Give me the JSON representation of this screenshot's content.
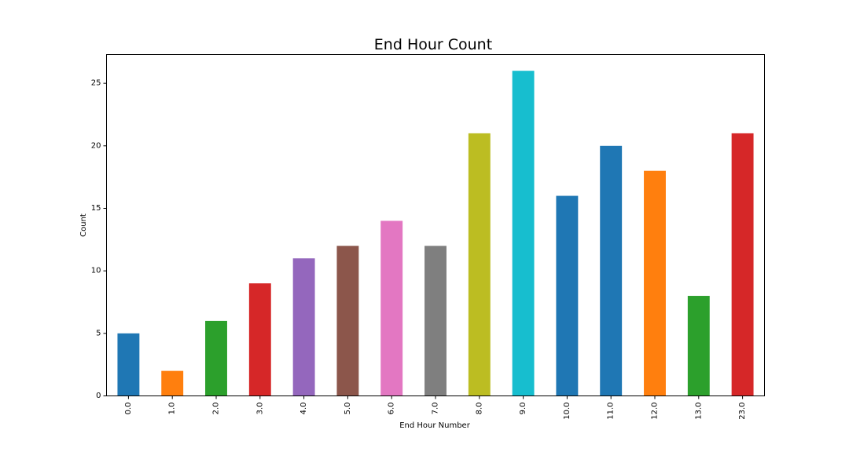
{
  "chart_data": {
    "type": "bar",
    "title": "End Hour Count",
    "xlabel": "End Hour Number",
    "ylabel": "Count",
    "categories": [
      "0.0",
      "1.0",
      "2.0",
      "3.0",
      "4.0",
      "5.0",
      "6.0",
      "7.0",
      "8.0",
      "9.0",
      "10.0",
      "11.0",
      "12.0",
      "13.0",
      "23.0"
    ],
    "values": [
      5,
      2,
      6,
      9,
      11,
      12,
      14,
      12,
      21,
      26,
      16,
      20,
      18,
      8,
      21
    ],
    "colors": [
      "#1f77b4",
      "#ff7f0e",
      "#2ca02c",
      "#d62728",
      "#9467bd",
      "#8c564b",
      "#e377c2",
      "#7f7f7f",
      "#bcbd22",
      "#17becf",
      "#1f77b4",
      "#1f77b4",
      "#ff7f0e",
      "#2ca02c",
      "#d62728"
    ],
    "ylim": [
      0,
      27.3
    ],
    "yticks": [
      0,
      5,
      10,
      15,
      20,
      25
    ],
    "grid": false,
    "legend": false
  }
}
